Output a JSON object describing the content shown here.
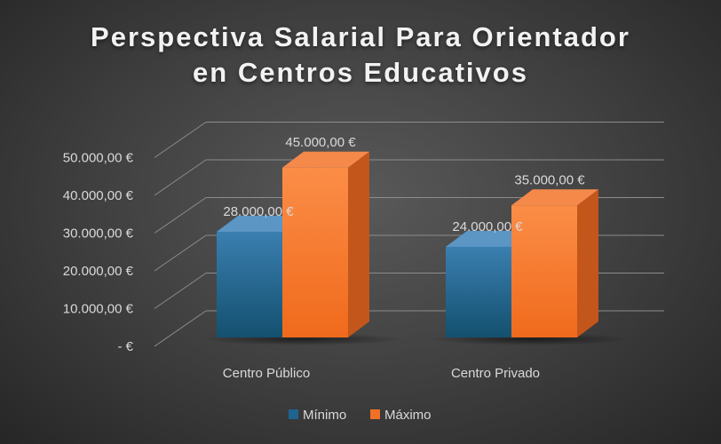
{
  "chart_data": {
    "type": "bar",
    "title": [
      "Perspectiva Salarial Para Orientador",
      "en Centros Educativos"
    ],
    "categories": [
      "Centro Público",
      "Centro Privado"
    ],
    "series": [
      {
        "name": "Mínimo",
        "values": [
          28000,
          24000
        ],
        "labels": [
          "28.000,00 €",
          "24.000,00 €"
        ],
        "color": "#1f6391"
      },
      {
        "name": "Máximo",
        "values": [
          45000,
          35000
        ],
        "labels": [
          "45.000,00 €",
          "35.000,00 €"
        ],
        "color": "#f07025"
      }
    ],
    "ylim": [
      0,
      50000
    ],
    "yticks": [
      0,
      10000,
      20000,
      30000,
      40000,
      50000
    ],
    "ytick_labels": [
      "-  €",
      "10.000,00 €",
      "20.000,00 €",
      "30.000,00 €",
      "40.000,00 €",
      "50.000,00 €"
    ],
    "grid": true,
    "legend": "bottom",
    "style": "3d-clustered-column"
  }
}
